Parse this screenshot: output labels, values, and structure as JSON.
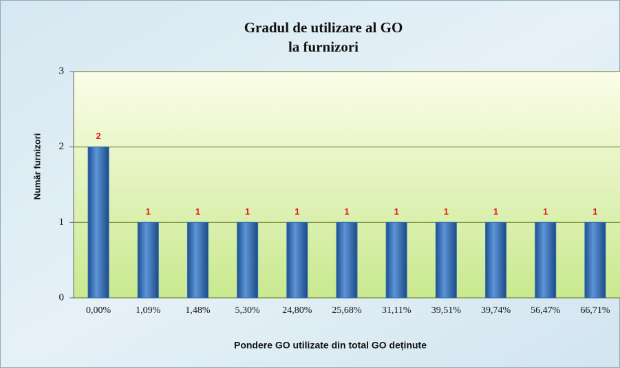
{
  "chart_data": {
    "type": "bar",
    "title": [
      "Gradul de utilizare al GO",
      "la furnizori"
    ],
    "xlabel": "Pondere GO utilizate din total GO deținute",
    "ylabel": "Număr furnizori",
    "categories": [
      "0,00%",
      "1,09%",
      "1,48%",
      "5,30%",
      "24,80%",
      "25,68%",
      "31,11%",
      "39,51%",
      "39,74%",
      "56,47%",
      "66,71%"
    ],
    "values": [
      2,
      1,
      1,
      1,
      1,
      1,
      1,
      1,
      1,
      1,
      1
    ],
    "color": "#2f6db5",
    "ylim": [
      0,
      3
    ],
    "yticks": [
      0,
      1,
      2,
      3
    ],
    "grid": true
  }
}
